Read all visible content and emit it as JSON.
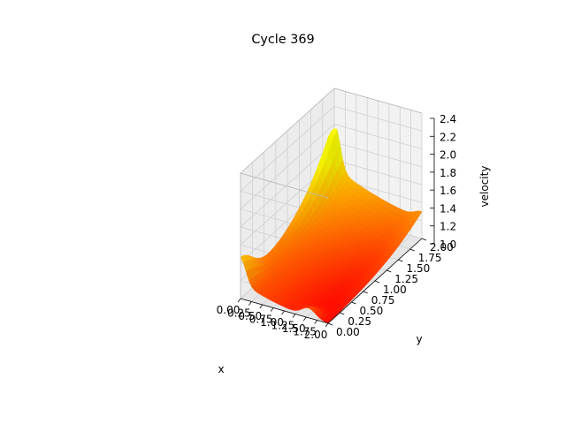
{
  "chart_data": {
    "type": "surface3d",
    "title": "Cycle 369",
    "xlabel": "x",
    "ylabel": "y",
    "zlabel": "velocity",
    "xlim": [
      0,
      2
    ],
    "ylim": [
      0,
      2
    ],
    "zlim": [
      1.0,
      2.4
    ],
    "x_ticks": [
      "0.00",
      "0.25",
      "0.50",
      "0.75",
      "1.00",
      "1.25",
      "1.50",
      "1.75",
      "2.00"
    ],
    "y_ticks": [
      "0.00",
      "0.25",
      "0.50",
      "0.75",
      "1.00",
      "1.25",
      "1.50",
      "1.75",
      "2.00"
    ],
    "z_ticks": [
      "1.0",
      "1.2",
      "1.4",
      "1.6",
      "1.8",
      "2.0",
      "2.2",
      "2.4"
    ],
    "grid": true,
    "colormap": "autumn_r",
    "colors": {
      "low": "#ff0000",
      "high": "#ffff00",
      "pane": "#f2f2f2",
      "grid": "#d0d0d0"
    },
    "surface": {
      "description": "nozzle-like velocity field with 1.0 baseline and ridges along the boundaries",
      "corner_values": [
        {
          "x": 2.0,
          "y": 0.0,
          "velocity": 1.0
        },
        {
          "x": 0.0,
          "y": 0.0,
          "velocity": 1.3
        },
        {
          "x": 0.0,
          "y": 2.0,
          "velocity": 1.95
        },
        {
          "x": 2.0,
          "y": 2.0,
          "velocity": 1.3
        }
      ],
      "minimum": 1.0,
      "maximum": 1.95
    }
  }
}
